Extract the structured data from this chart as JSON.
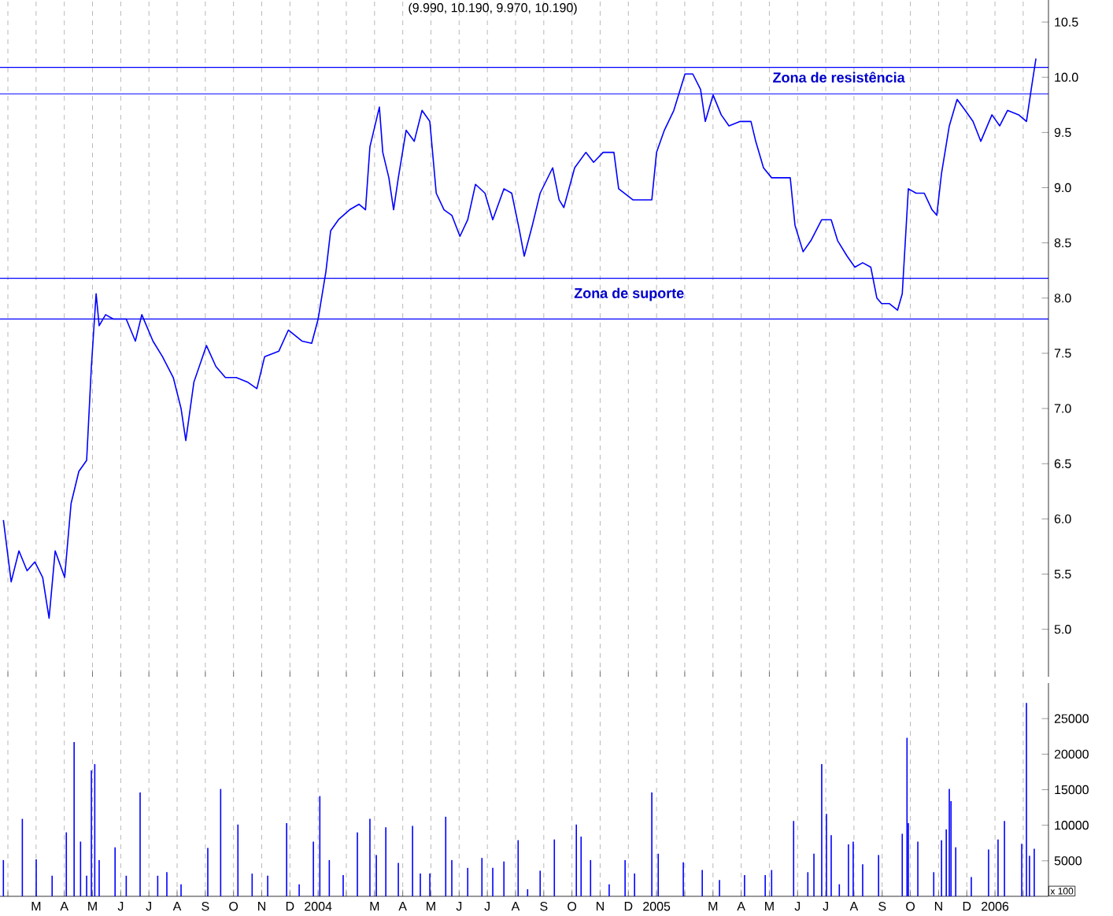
{
  "chart_data": [
    {
      "type": "line",
      "title": "(9.990, 10.190, 9.970, 10.190)",
      "xlim": [
        2003.06,
        2006.158
      ],
      "ylim": [
        4.57,
        10.7
      ],
      "grid": "x",
      "tick_labels": "y",
      "xticks": [
        {
          "value": 2003.0833,
          "label": null
        },
        {
          "value": 2003.1667,
          "label": null
        },
        {
          "value": 2003.25,
          "label": null
        },
        {
          "value": 2003.3333,
          "label": null
        },
        {
          "value": 2003.4167,
          "label": null
        },
        {
          "value": 2003.5,
          "label": null
        },
        {
          "value": 2003.5833,
          "label": null
        },
        {
          "value": 2003.6667,
          "label": null
        },
        {
          "value": 2003.75,
          "label": null
        },
        {
          "value": 2003.8333,
          "label": null
        },
        {
          "value": 2003.9167,
          "label": null
        },
        {
          "value": 2004,
          "label": null
        },
        {
          "value": 2004.0833,
          "label": null
        },
        {
          "value": 2004.1667,
          "label": null
        },
        {
          "value": 2004.25,
          "label": null
        },
        {
          "value": 2004.3333,
          "label": null
        },
        {
          "value": 2004.4167,
          "label": null
        },
        {
          "value": 2004.5,
          "label": null
        },
        {
          "value": 2004.5833,
          "label": null
        },
        {
          "value": 2004.6667,
          "label": null
        },
        {
          "value": 2004.75,
          "label": null
        },
        {
          "value": 2004.8333,
          "label": null
        },
        {
          "value": 2004.9167,
          "label": null
        },
        {
          "value": 2005,
          "label": null
        },
        {
          "value": 2005.0833,
          "label": null
        },
        {
          "value": 2005.1667,
          "label": null
        },
        {
          "value": 2005.25,
          "label": null
        },
        {
          "value": 2005.3333,
          "label": null
        },
        {
          "value": 2005.4167,
          "label": null
        },
        {
          "value": 2005.5,
          "label": null
        },
        {
          "value": 2005.5833,
          "label": null
        },
        {
          "value": 2005.6667,
          "label": null
        },
        {
          "value": 2005.75,
          "label": null
        },
        {
          "value": 2005.8333,
          "label": null
        },
        {
          "value": 2005.9167,
          "label": null
        },
        {
          "value": 2006,
          "label": null
        },
        {
          "value": 2006.0833,
          "label": null
        }
      ],
      "yticks": [
        {
          "value": 5.0,
          "label": "5.0"
        },
        {
          "value": 5.5,
          "label": "5.5"
        },
        {
          "value": 6.0,
          "label": "6.0"
        },
        {
          "value": 6.5,
          "label": "6.5"
        },
        {
          "value": 7.0,
          "label": "7.0"
        },
        {
          "value": 7.5,
          "label": "7.5"
        },
        {
          "value": 8.0,
          "label": "8.0"
        },
        {
          "value": 8.5,
          "label": "8.5"
        },
        {
          "value": 9.0,
          "label": "9.0"
        },
        {
          "value": 9.5,
          "label": "9.5"
        },
        {
          "value": 10.0,
          "label": "10.0"
        },
        {
          "value": 10.5,
          "label": "10.5"
        }
      ],
      "ref_lines": [
        {
          "axis": "y",
          "value": 10.09,
          "color": "#0000ff"
        },
        {
          "axis": "y",
          "value": 9.85,
          "color": "#0000ff"
        },
        {
          "axis": "y",
          "value": 8.18,
          "color": "#0000ff"
        },
        {
          "axis": "y",
          "value": 7.81,
          "color": "#0000ff"
        }
      ],
      "annotations": [
        "Zona de resistência",
        "Zona de suporte"
      ],
      "series": [
        {
          "color": "#0000ff",
          "x": [
            2003.07,
            2003.093,
            2003.116,
            2003.14,
            2003.163,
            2003.186,
            2003.205,
            2003.223,
            2003.251,
            2003.27,
            2003.293,
            2003.316,
            2003.33,
            2003.344,
            2003.353,
            2003.372,
            2003.395,
            2003.433,
            2003.46,
            2003.479,
            2003.512,
            2003.54,
            2003.572,
            2003.595,
            2003.609,
            2003.633,
            2003.67,
            2003.698,
            2003.726,
            2003.758,
            2003.791,
            2003.819,
            2003.842,
            2003.884,
            2003.912,
            2003.953,
            2003.981,
            2004.0,
            2004.023,
            2004.037,
            2004.06,
            2004.093,
            2004.121,
            2004.14,
            2004.153,
            2004.181,
            2004.191,
            2004.209,
            2004.223,
            2004.237,
            2004.26,
            2004.284,
            2004.307,
            2004.33,
            2004.349,
            2004.372,
            2004.395,
            2004.419,
            2004.442,
            2004.465,
            2004.493,
            2004.516,
            2004.549,
            2004.572,
            2004.595,
            2004.609,
            2004.633,
            2004.656,
            2004.693,
            2004.712,
            2004.726,
            2004.758,
            2004.791,
            2004.814,
            2004.842,
            2004.874,
            2004.888,
            2004.93,
            2004.967,
            2004.986,
            2005.0,
            2005.023,
            2005.051,
            2005.084,
            2005.107,
            2005.13,
            2005.144,
            2005.167,
            2005.191,
            2005.214,
            2005.247,
            2005.279,
            2005.293,
            2005.316,
            2005.34,
            2005.372,
            2005.395,
            2005.409,
            2005.433,
            2005.456,
            2005.488,
            2005.516,
            2005.535,
            2005.563,
            2005.586,
            2005.609,
            2005.633,
            2005.651,
            2005.665,
            2005.688,
            2005.712,
            2005.726,
            2005.744,
            2005.767,
            2005.791,
            2005.814,
            2005.828,
            2005.842,
            2005.865,
            2005.888,
            2005.912,
            2005.935,
            2005.958,
            2005.991,
            2006.014,
            2006.037,
            2006.07,
            2006.093,
            2006.107,
            2006.121
          ],
          "values": [
            5.99,
            5.43,
            5.71,
            5.53,
            5.61,
            5.47,
            5.1,
            5.71,
            5.47,
            6.14,
            6.43,
            6.53,
            7.38,
            8.04,
            7.75,
            7.85,
            7.81,
            7.81,
            7.61,
            7.85,
            7.61,
            7.47,
            7.28,
            7.0,
            6.71,
            7.24,
            7.57,
            7.38,
            7.28,
            7.28,
            7.24,
            7.18,
            7.47,
            7.52,
            7.71,
            7.61,
            7.59,
            7.81,
            8.24,
            8.61,
            8.71,
            8.8,
            8.85,
            8.8,
            9.37,
            9.73,
            9.32,
            9.09,
            8.8,
            9.09,
            9.52,
            9.42,
            9.7,
            9.6,
            8.95,
            8.8,
            8.75,
            8.56,
            8.71,
            9.03,
            8.95,
            8.71,
            8.99,
            8.95,
            8.61,
            8.38,
            8.66,
            8.95,
            9.18,
            8.89,
            8.82,
            9.18,
            9.32,
            9.23,
            9.32,
            9.32,
            8.99,
            8.89,
            8.89,
            8.89,
            9.32,
            9.52,
            9.7,
            10.03,
            10.03,
            9.89,
            9.6,
            9.84,
            9.66,
            9.56,
            9.6,
            9.6,
            9.42,
            9.18,
            9.09,
            9.09,
            9.09,
            8.66,
            8.42,
            8.52,
            8.71,
            8.71,
            8.52,
            8.38,
            8.28,
            8.32,
            8.28,
            8.0,
            7.95,
            7.95,
            7.89,
            8.04,
            8.99,
            8.95,
            8.95,
            8.8,
            8.75,
            9.13,
            9.56,
            9.8,
            9.7,
            9.6,
            9.42,
            9.66,
            9.56,
            9.7,
            9.66,
            9.6,
            9.89,
            10.17
          ]
        }
      ]
    },
    {
      "type": "bar",
      "xlim": [
        2003.06,
        2006.158
      ],
      "ylim": [
        0,
        30000
      ],
      "grid": "x",
      "xticks": [
        {
          "value": 2003.0833,
          "label": null
        },
        {
          "value": 2003.1667,
          "label": "M"
        },
        {
          "value": 2003.25,
          "label": "A"
        },
        {
          "value": 2003.3333,
          "label": "M"
        },
        {
          "value": 2003.4167,
          "label": "J"
        },
        {
          "value": 2003.5,
          "label": "J"
        },
        {
          "value": 2003.5833,
          "label": "A"
        },
        {
          "value": 2003.6667,
          "label": "S"
        },
        {
          "value": 2003.75,
          "label": "O"
        },
        {
          "value": 2003.8333,
          "label": "N"
        },
        {
          "value": 2003.9167,
          "label": "D"
        },
        {
          "value": 2004,
          "label": "2004"
        },
        {
          "value": 2004.0833,
          "label": null
        },
        {
          "value": 2004.1667,
          "label": "M"
        },
        {
          "value": 2004.25,
          "label": "A"
        },
        {
          "value": 2004.3333,
          "label": "M"
        },
        {
          "value": 2004.4167,
          "label": "J"
        },
        {
          "value": 2004.5,
          "label": "J"
        },
        {
          "value": 2004.5833,
          "label": "A"
        },
        {
          "value": 2004.6667,
          "label": "S"
        },
        {
          "value": 2004.75,
          "label": "O"
        },
        {
          "value": 2004.8333,
          "label": "N"
        },
        {
          "value": 2004.9167,
          "label": "D"
        },
        {
          "value": 2005,
          "label": "2005"
        },
        {
          "value": 2005.0833,
          "label": null
        },
        {
          "value": 2005.1667,
          "label": "M"
        },
        {
          "value": 2005.25,
          "label": "A"
        },
        {
          "value": 2005.3333,
          "label": "M"
        },
        {
          "value": 2005.4167,
          "label": "J"
        },
        {
          "value": 2005.5,
          "label": "J"
        },
        {
          "value": 2005.5833,
          "label": "A"
        },
        {
          "value": 2005.6667,
          "label": "S"
        },
        {
          "value": 2005.75,
          "label": "O"
        },
        {
          "value": 2005.8333,
          "label": "N"
        },
        {
          "value": 2005.9167,
          "label": "D"
        },
        {
          "value": 2006,
          "label": "2006"
        },
        {
          "value": 2006.0833,
          "label": null
        }
      ],
      "yticks": [
        5000,
        10000,
        15000,
        20000,
        25000
      ],
      "annotations": [
        "x 100"
      ],
      "series": [
        {
          "color": "#0000ff",
          "x": [
            2003.07,
            2003.126,
            2003.167,
            2003.214,
            2003.256,
            2003.279,
            2003.298,
            2003.316,
            2003.33,
            2003.34,
            2003.353,
            2003.4,
            2003.433,
            2003.474,
            2003.526,
            2003.553,
            2003.595,
            2003.674,
            2003.712,
            2003.763,
            2003.805,
            2003.851,
            2003.907,
            2003.944,
            2003.986,
            2004.005,
            2004.033,
            2004.074,
            2004.116,
            2004.153,
            2004.172,
            2004.2,
            2004.237,
            2004.279,
            2004.302,
            2004.33,
            2004.377,
            2004.395,
            2004.442,
            2004.484,
            2004.516,
            2004.549,
            2004.591,
            2004.619,
            2004.656,
            2004.698,
            2004.763,
            2004.777,
            2004.805,
            2004.86,
            2004.907,
            2004.935,
            2004.986,
            2005.005,
            2005.079,
            2005.135,
            2005.186,
            2005.26,
            2005.321,
            2005.34,
            2005.405,
            2005.447,
            2005.465,
            2005.488,
            2005.502,
            2005.516,
            2005.54,
            2005.567,
            2005.581,
            2005.609,
            2005.656,
            2005.726,
            2005.74,
            2005.744,
            2005.772,
            2005.819,
            2005.842,
            2005.856,
            2005.865,
            2005.87,
            2005.884,
            2005.93,
            2005.981,
            2006.009,
            2006.028,
            2006.079,
            2006.093,
            2006.102,
            2006.116
          ],
          "values": [
            5100,
            10900,
            5200,
            2900,
            9000,
            21700,
            7700,
            2900,
            17700,
            18600,
            5100,
            6900,
            2900,
            14600,
            2900,
            3400,
            1700,
            6800,
            15100,
            10100,
            3200,
            2900,
            10300,
            1700,
            7700,
            14100,
            5100,
            3000,
            9000,
            10900,
            5800,
            9700,
            4700,
            9900,
            3200,
            3200,
            11200,
            5100,
            4000,
            5400,
            4000,
            4900,
            7900,
            1000,
            3600,
            8000,
            10100,
            8400,
            5100,
            1700,
            5100,
            3200,
            14600,
            6000,
            4800,
            3700,
            2300,
            3000,
            3000,
            3700,
            10600,
            3400,
            6000,
            18600,
            11600,
            8600,
            1700,
            7300,
            7700,
            4500,
            5800,
            8800,
            22300,
            10300,
            7700,
            3400,
            7900,
            9400,
            15100,
            13400,
            6900,
            2700,
            6600,
            8000,
            10600,
            7400,
            27200,
            5700,
            6700
          ]
        }
      ]
    }
  ]
}
